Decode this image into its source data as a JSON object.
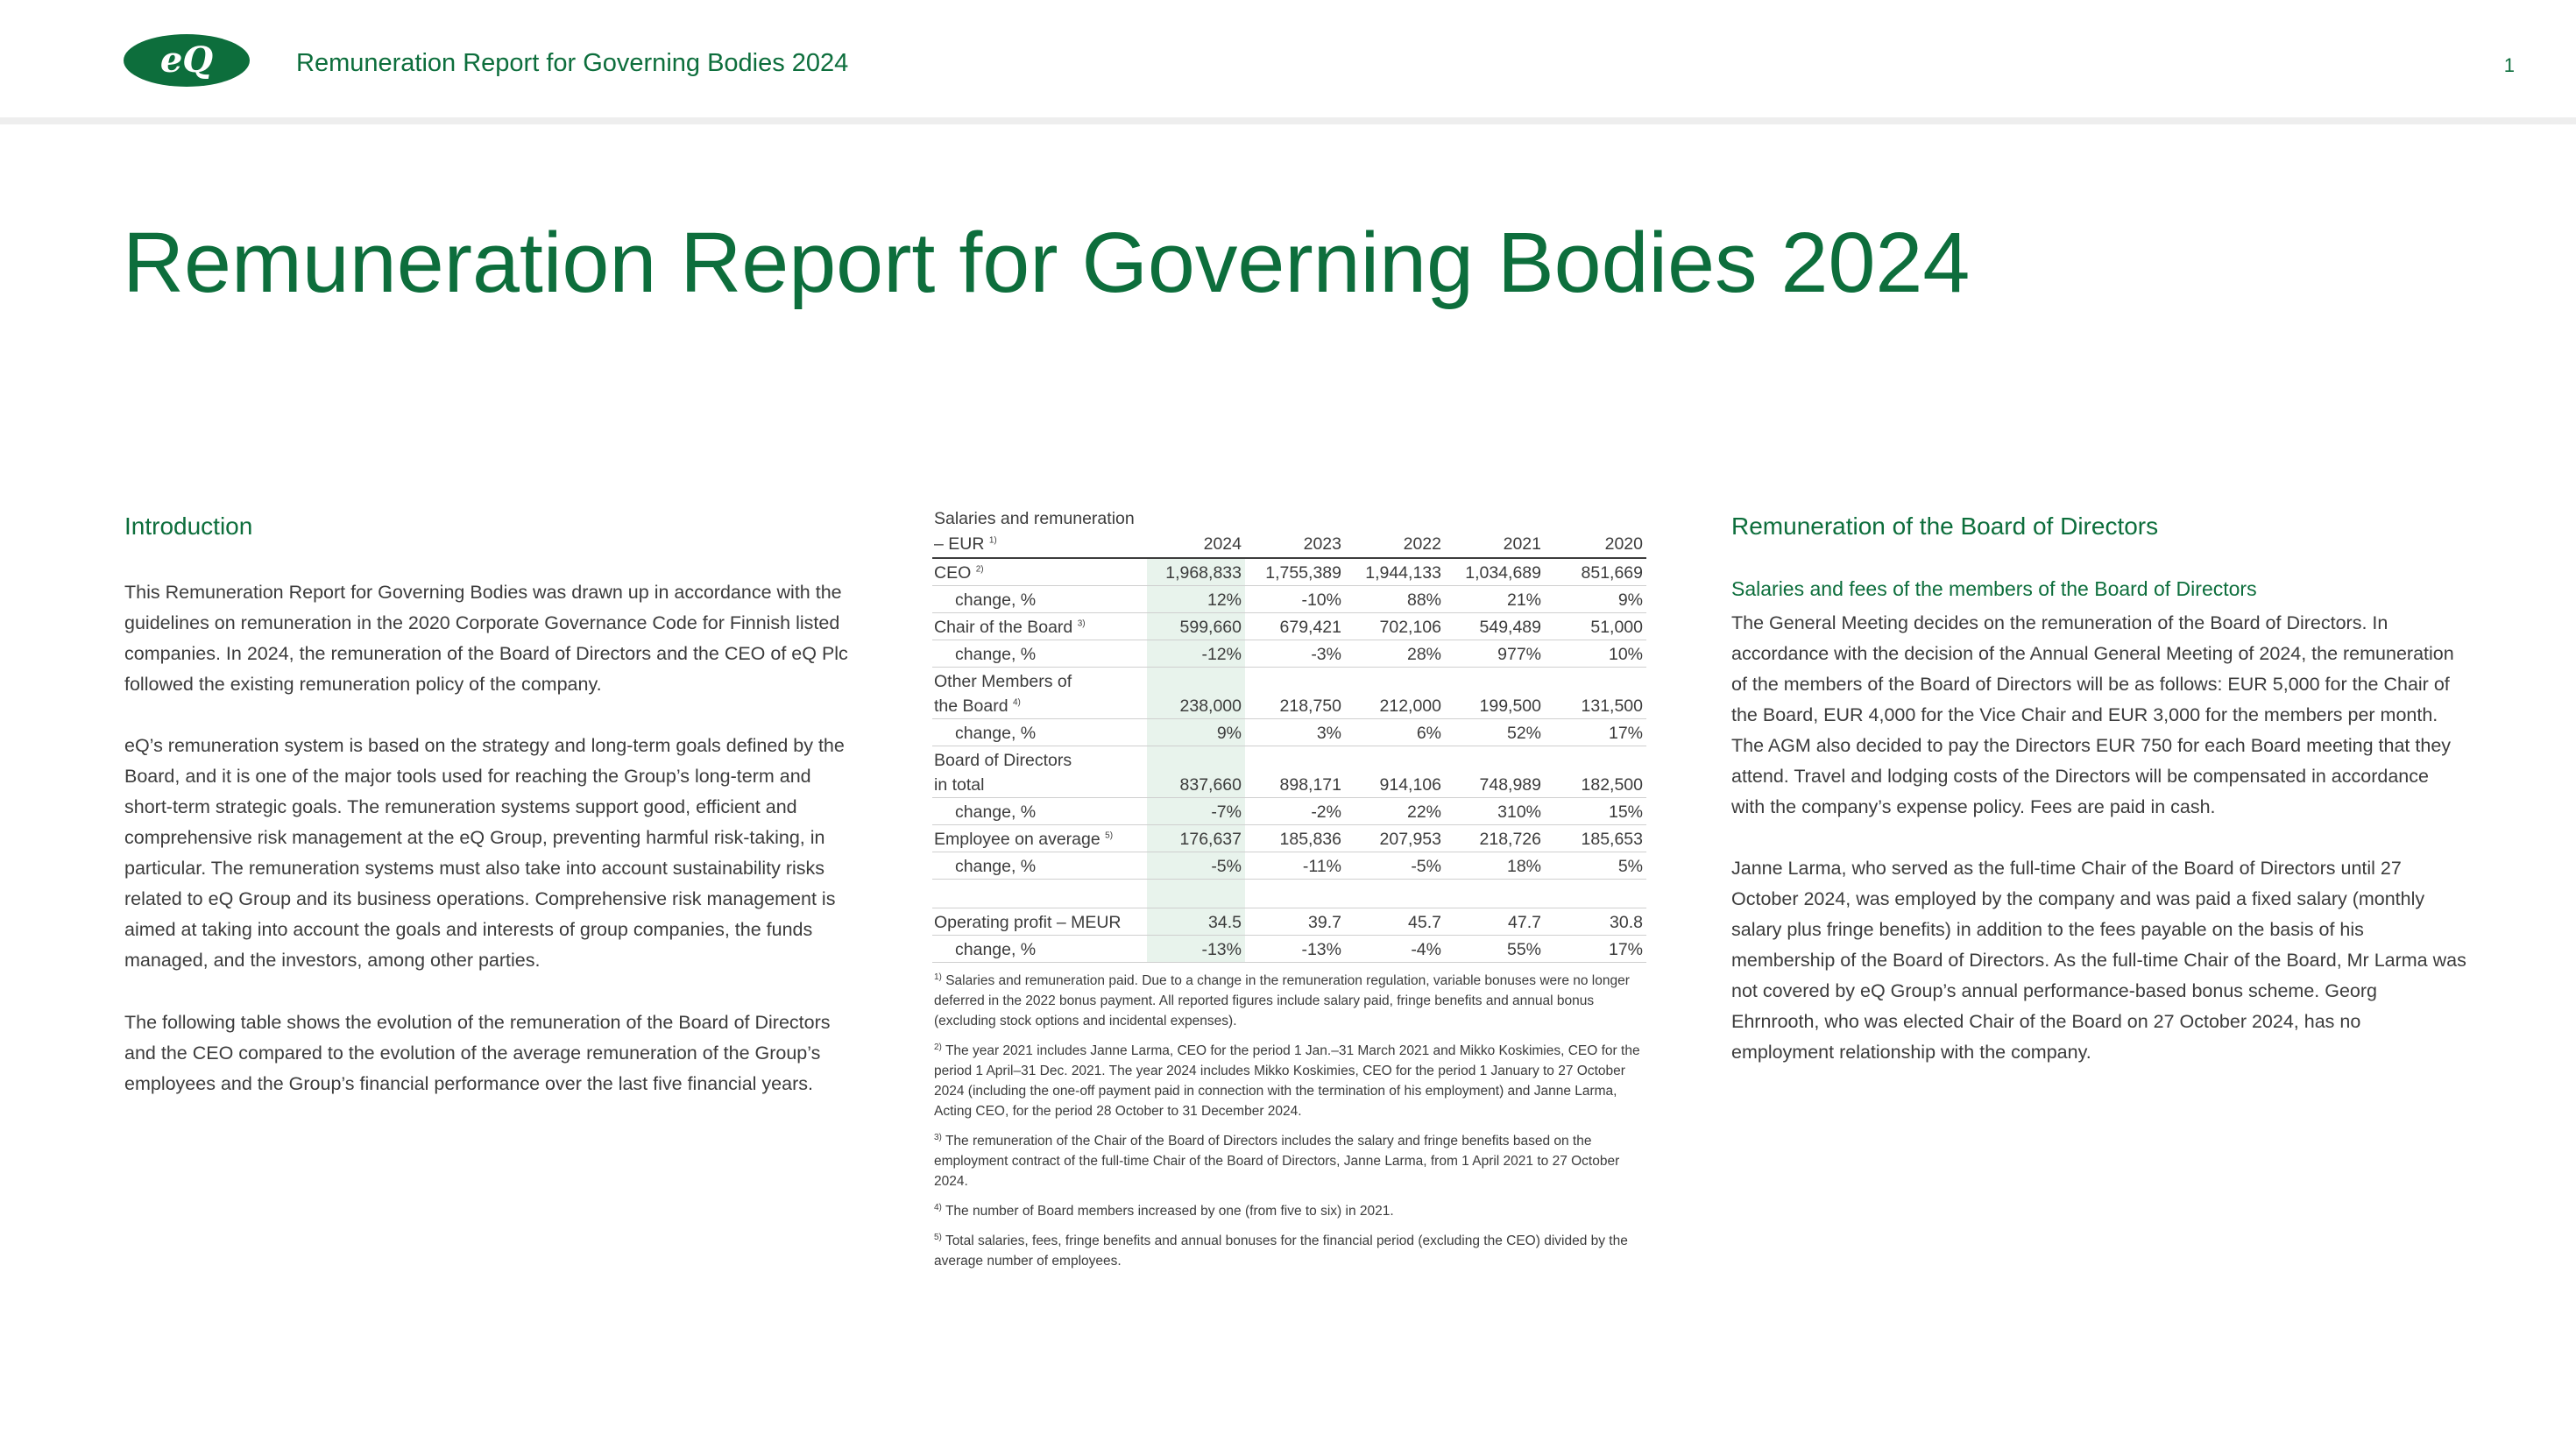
{
  "header": {
    "logo_text": "eQ",
    "title": "Remuneration Report for Governing Bodies 2024",
    "page_number": "1"
  },
  "main_title": "Remuneration Report for Governing Bodies 2024",
  "intro": {
    "heading": "Introduction",
    "paragraphs": [
      "This Remuneration Report for Governing Bodies was drawn up in accordance with the guidelines on remuneration in the 2020 Corporate Governance Code for Finnish listed companies. In 2024, the remuneration of the Board of Directors and the CEO of eQ Plc followed the existing remuneration policy of the company.",
      "eQ’s remuneration system is based on the strategy and long-term goals defined by the Board, and it is one of the major tools used for reaching the Group’s long-term and short-term strategic goals. The remuneration systems support good, efficient and comprehensive risk management at the eQ Group, preventing harmful risk-taking, in particular. The remuneration systems must also take into account sustainability risks related to eQ Group and its business operations. Comprehensive risk management is aimed at taking into account the goals and interests of group companies, the funds managed, and the investors, among other parties.",
      "The following table shows the evolution of the remuneration of the Board of Directors and the CEO compared to the evolution of the average remuneration of the Group’s employees and the Group’s financial performance over the last five financial years."
    ]
  },
  "table": {
    "header_label_line1": "Salaries and remuneration",
    "header_label_line2": "– EUR",
    "header_label_fn": "1)",
    "years": [
      "2024",
      "2023",
      "2022",
      "2021",
      "2020"
    ],
    "rows": [
      {
        "label": "CEO",
        "fn": "2)",
        "values": [
          "1,968,833",
          "1,755,389",
          "1,944,133",
          "1,034,689",
          "851,669"
        ]
      },
      {
        "label": "change, %",
        "fn": "",
        "values": [
          "12%",
          "-10%",
          "88%",
          "21%",
          "9%"
        ]
      },
      {
        "label": "Chair of the Board",
        "fn": "3)",
        "values": [
          "599,660",
          "679,421",
          "702,106",
          "549,489",
          "51,000"
        ]
      },
      {
        "label": "change, %",
        "fn": "",
        "values": [
          "-12%",
          "-3%",
          "28%",
          "977%",
          "10%"
        ]
      },
      {
        "label": "Other Members of",
        "label2": "the Board",
        "fn": "4)",
        "values": [
          "238,000",
          "218,750",
          "212,000",
          "199,500",
          "131,500"
        ]
      },
      {
        "label": "change, %",
        "fn": "",
        "values": [
          "9%",
          "3%",
          "6%",
          "52%",
          "17%"
        ]
      },
      {
        "label": "Board of Directors",
        "label2": "in total",
        "fn": "",
        "values": [
          "837,660",
          "898,171",
          "914,106",
          "748,989",
          "182,500"
        ]
      },
      {
        "label": "change, %",
        "fn": "",
        "values": [
          "-7%",
          "-2%",
          "22%",
          "310%",
          "15%"
        ]
      },
      {
        "label": "Employee on average",
        "fn": "5)",
        "values": [
          "176,637",
          "185,836",
          "207,953",
          "218,726",
          "185,653"
        ]
      },
      {
        "label": "change, %",
        "fn": "",
        "values": [
          "-5%",
          "-11%",
          "-5%",
          "18%",
          "5%"
        ]
      },
      {
        "label": "Operating profit – MEUR",
        "fn": "",
        "values": [
          "34.5",
          "39.7",
          "45.7",
          "47.7",
          "30.8"
        ]
      },
      {
        "label": "change, %",
        "fn": "",
        "values": [
          "-13%",
          "-13%",
          "-4%",
          "55%",
          "17%"
        ]
      }
    ]
  },
  "footnotes": [
    {
      "mark": "1)",
      "text": "Salaries and remuneration paid. Due to a change in the remuneration regulation, variable bonuses were no longer deferred in the 2022 bonus payment. All reported figures include salary paid, fringe benefits and annual bonus (excluding stock options and incidental expenses)."
    },
    {
      "mark": "2)",
      "text": "The year 2021 includes Janne Larma, CEO for the period 1 Jan.–31 March 2021 and Mikko Koskimies, CEO for the period 1 April–31 Dec. 2021. The year 2024 includes Mikko Koskimies, CEO for the period 1 January to 27 October 2024 (including the one-off payment paid in connection with the termination of his employment) and Janne Larma, Acting CEO, for the period 28 October to 31 December 2024."
    },
    {
      "mark": "3)",
      "text": "The remuneration of the Chair of the Board of Directors includes the salary and fringe benefits based on the employment contract of the full-time Chair of the Board of Directors, Janne Larma, from 1 April 2021 to 27 October 2024."
    },
    {
      "mark": "4)",
      "text": "The number of Board members increased by one (from five to six) in 2021."
    },
    {
      "mark": "5)",
      "text": "Total salaries, fees, fringe benefits and annual bonuses for the financial period (excluding the CEO) divided by the average number of employees."
    }
  ],
  "board": {
    "heading": "Remuneration of the Board of Directors",
    "subheading": "Salaries and fees of the members of the Board of Directors",
    "paragraphs": [
      "The General Meeting decides on the remuneration of the Board of Directors. In accordance with the decision of the Annual General Meeting of 2024, the remuneration of the members of the Board of Directors will be as follows: EUR 5,000 for the Chair of the Board, EUR 4,000 for the Vice Chair and EUR 3,000 for the members per month. The AGM also decided to pay the Directors EUR 750 for each Board meeting that they attend. Travel and lodging costs of the Directors will be compensated in accordance with the company’s expense policy. Fees are paid in cash.",
      "Janne Larma, who served as the full-time Chair of the Board of Directors until 27 October 2024, was employed by the company and was paid a fixed salary (monthly salary plus fringe benefits) in addition to the fees payable on the basis of his membership of the Board of Directors. As the full-time Chair of the Board, Mr Larma was not covered by eQ Group’s annual performance-based bonus scheme. Georg Ehrnrooth, who was elected Chair of the Board on 27 October 2024, has no employment relationship with the company."
    ]
  },
  "colors": {
    "brand_green": "#0d6e3c",
    "highlight_column": "#e8f3ec",
    "body_text": "#3c3c3c"
  }
}
